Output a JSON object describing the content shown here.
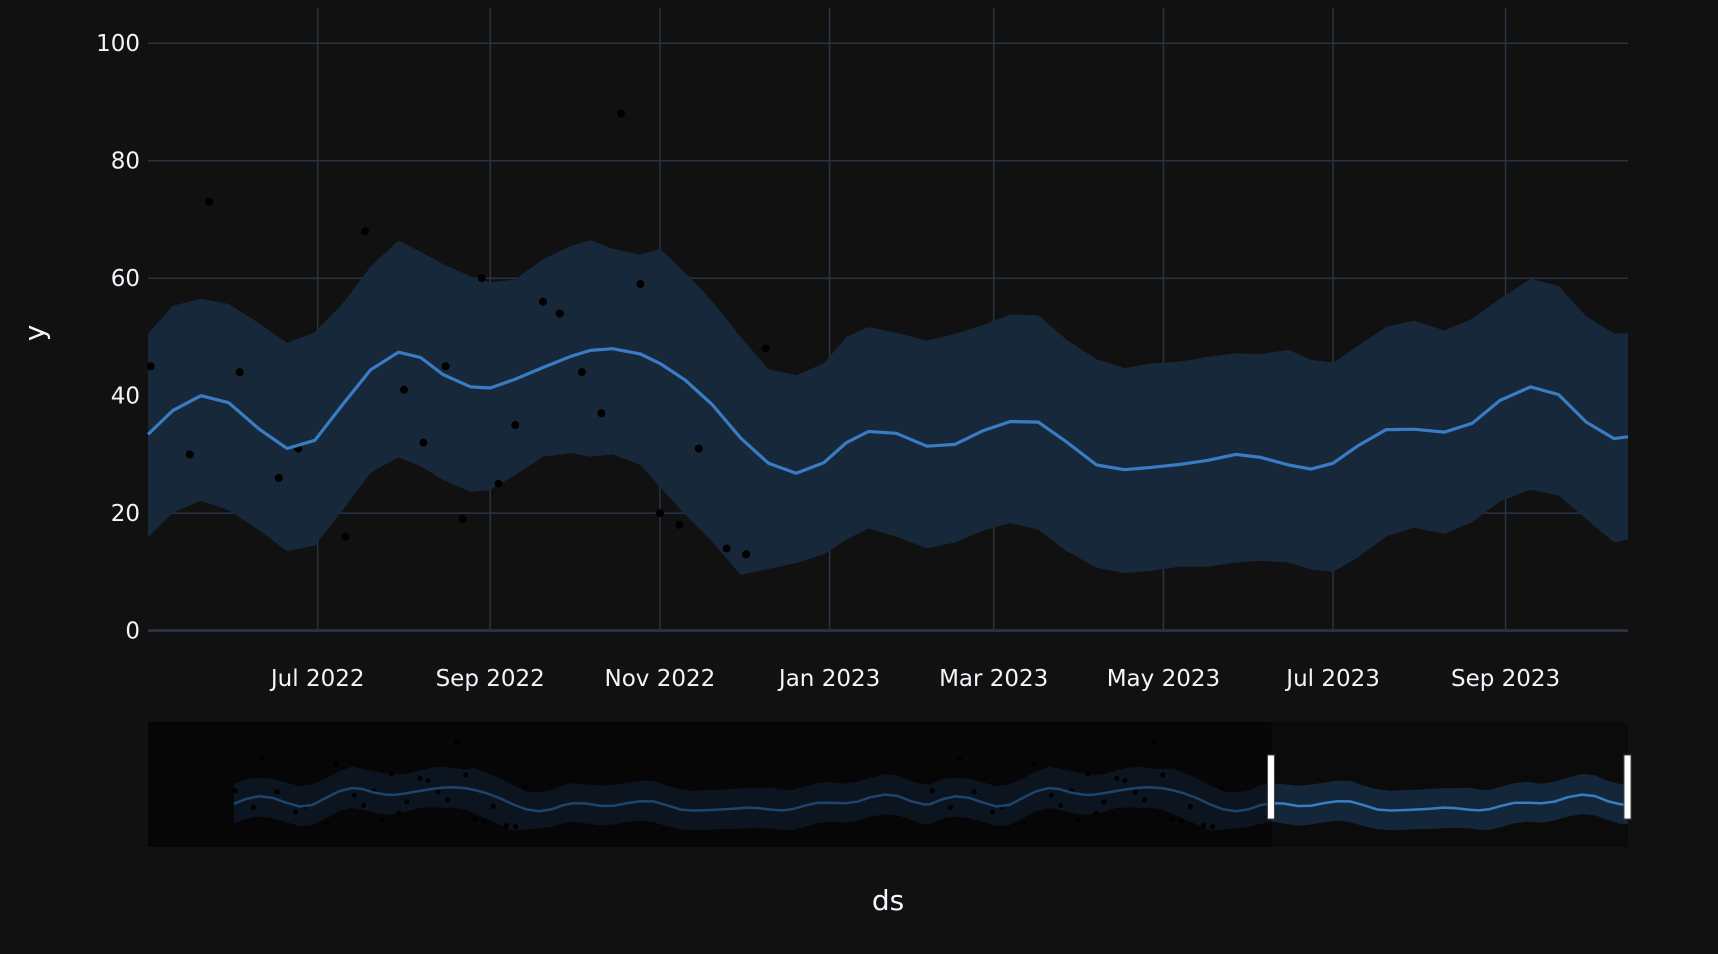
{
  "chart_data": {
    "type": "line",
    "xlabel": "ds",
    "ylabel": "y",
    "ylim": [
      -5,
      106
    ],
    "xlim": [
      "2022-05-01",
      "2023-10-15"
    ],
    "yticks": [
      0,
      20,
      40,
      60,
      80,
      100
    ],
    "xticks": [
      {
        "date": "2022-07-01",
        "label": "Jul 2022"
      },
      {
        "date": "2022-09-01",
        "label": "Sep 2022"
      },
      {
        "date": "2022-11-01",
        "label": "Nov 2022"
      },
      {
        "date": "2023-01-01",
        "label": "Jan 2023"
      },
      {
        "date": "2023-03-01",
        "label": "Mar 2023"
      },
      {
        "date": "2023-05-01",
        "label": "May 2023"
      },
      {
        "date": "2023-07-01",
        "label": "Jul 2023"
      },
      {
        "date": "2023-09-01",
        "label": "Sep 2023"
      }
    ],
    "grid": true,
    "colors": {
      "forecast": "#3a7cc4",
      "band": "#16283a",
      "observed": "#000000",
      "background": "#111111",
      "grid": "#283442"
    },
    "forecast": {
      "dates": [
        "2022-05-01",
        "2022-05-10",
        "2022-05-20",
        "2022-05-30",
        "2022-06-10",
        "2022-06-20",
        "2022-06-30",
        "2022-07-10",
        "2022-07-20",
        "2022-07-30",
        "2022-08-07",
        "2022-08-15",
        "2022-08-25",
        "2022-09-01",
        "2022-09-10",
        "2022-09-20",
        "2022-09-30",
        "2022-10-07",
        "2022-10-15",
        "2022-10-25",
        "2022-11-01",
        "2022-11-10",
        "2022-11-20",
        "2022-11-30",
        "2022-12-10",
        "2022-12-20",
        "2022-12-30",
        "2023-01-07",
        "2023-01-15",
        "2023-01-25",
        "2023-02-05",
        "2023-02-15",
        "2023-02-25",
        "2023-03-07",
        "2023-03-17",
        "2023-03-27",
        "2023-04-07",
        "2023-04-17",
        "2023-04-27",
        "2023-05-07",
        "2023-05-17",
        "2023-05-27",
        "2023-06-05",
        "2023-06-15",
        "2023-06-23",
        "2023-07-01",
        "2023-07-10",
        "2023-07-20",
        "2023-07-30",
        "2023-08-10",
        "2023-08-20",
        "2023-08-30",
        "2023-09-10",
        "2023-09-20",
        "2023-09-30",
        "2023-10-10",
        "2023-10-15"
      ],
      "yhat": [
        33.4,
        37.5,
        40,
        38.8,
        34.3,
        31,
        32.4,
        38.5,
        44.4,
        47.4,
        46.5,
        43.6,
        41.5,
        41.3,
        42.8,
        44.8,
        46.7,
        47.7,
        48,
        47.1,
        45.5,
        42.7,
        38.4,
        32.8,
        28.5,
        26.8,
        28.6,
        32,
        33.9,
        33.6,
        31.4,
        31.7,
        34,
        35.6,
        35.5,
        32.2,
        28.2,
        27.4,
        27.8,
        28.3,
        29,
        30,
        29.5,
        28.2,
        27.5,
        28.5,
        31.5,
        34.2,
        34.3,
        33.8,
        35.3,
        39.2,
        41.5,
        40.2,
        35.5,
        32.7,
        33
      ],
      "lower": [
        15.8,
        20.1,
        22.1,
        20.5,
        17.1,
        13.5,
        14.5,
        20.5,
        26.9,
        29.5,
        28,
        25.7,
        23.6,
        24,
        26.5,
        29.6,
        30.2,
        29.6,
        30,
        28.2,
        24.5,
        19.8,
        15,
        9.5,
        10.5,
        11.5,
        13,
        15.5,
        17.4,
        16,
        14,
        15,
        17,
        18.3,
        17.2,
        13.6,
        10.7,
        9.8,
        10.2,
        10.9,
        10.9,
        11.6,
        11.9,
        11.6,
        10.4,
        10,
        12.5,
        16,
        17.5,
        16.5,
        18.5,
        22,
        24,
        23,
        19,
        15,
        15.5
      ],
      "upper": [
        50.6,
        55.3,
        56.5,
        55.6,
        52.3,
        49,
        50.8,
        55.7,
        62,
        66.4,
        64.5,
        62.4,
        60.3,
        59.3,
        59.8,
        63.2,
        65.5,
        66.5,
        65,
        64,
        65,
        61,
        56,
        50,
        44.5,
        43.5,
        45.5,
        50,
        51.7,
        50.7,
        49.4,
        50.5,
        52,
        53.8,
        53.7,
        49.6,
        46.2,
        44.7,
        45.5,
        45.8,
        46.6,
        47.2,
        47.1,
        47.8,
        46.1,
        45.6,
        48.5,
        51.7,
        52.8,
        51.1,
        53.1,
        56.5,
        59.9,
        58.7,
        53.5,
        50.6,
        50.6
      ]
    },
    "observed": [
      {
        "x": "2022-05-02",
        "y": 45
      },
      {
        "x": "2022-05-16",
        "y": 30
      },
      {
        "x": "2022-05-23",
        "y": 73
      },
      {
        "x": "2022-06-03",
        "y": 44
      },
      {
        "x": "2022-06-17",
        "y": 26
      },
      {
        "x": "2022-06-24",
        "y": 31
      },
      {
        "x": "2022-07-11",
        "y": 16
      },
      {
        "x": "2022-07-18",
        "y": 68
      },
      {
        "x": "2022-08-01",
        "y": 41
      },
      {
        "x": "2022-08-08",
        "y": 32
      },
      {
        "x": "2022-08-16",
        "y": 45
      },
      {
        "x": "2022-08-22",
        "y": 19
      },
      {
        "x": "2022-08-29",
        "y": 60
      },
      {
        "x": "2022-09-04",
        "y": 25
      },
      {
        "x": "2022-09-10",
        "y": 35
      },
      {
        "x": "2022-09-20",
        "y": 56
      },
      {
        "x": "2022-09-26",
        "y": 54
      },
      {
        "x": "2022-10-04",
        "y": 44
      },
      {
        "x": "2022-10-11",
        "y": 37
      },
      {
        "x": "2022-10-18",
        "y": 88
      },
      {
        "x": "2022-10-25",
        "y": 59
      },
      {
        "x": "2022-11-01",
        "y": 20
      },
      {
        "x": "2022-11-08",
        "y": 18
      },
      {
        "x": "2022-11-15",
        "y": 31
      },
      {
        "x": "2022-11-25",
        "y": 14
      },
      {
        "x": "2022-12-02",
        "y": 13
      },
      {
        "x": "2022-12-09",
        "y": 48
      }
    ],
    "navigator": {
      "range_start": "2021-01-01",
      "range_end": "2023-10-15",
      "selection_start": "2023-02-12",
      "selection_end": "2023-10-15"
    }
  }
}
